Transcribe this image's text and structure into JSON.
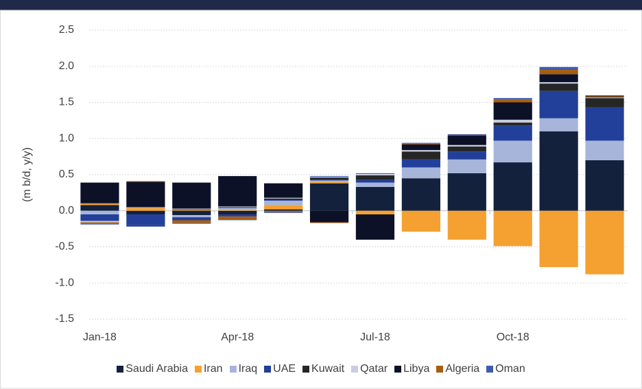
{
  "chart_data": {
    "type": "stacked-bar",
    "y_label": "(m b/d, y/y)",
    "categories": [
      "Jan-18",
      null,
      null,
      "Apr-18",
      null,
      null,
      "Jul-18",
      null,
      null,
      "Oct-18",
      null,
      null
    ],
    "series": [
      {
        "name": "Saudi Arabia",
        "color": "#14213d",
        "values": [
          0.08,
          -0.05,
          -0.06,
          -0.05,
          0.02,
          0.38,
          0.33,
          0.45,
          0.52,
          0.67,
          1.1,
          0.7
        ]
      },
      {
        "name": "Iran",
        "color": "#f4a131",
        "values": [
          0.02,
          0.04,
          0.01,
          0.01,
          0.06,
          0.02,
          -0.05,
          -0.29,
          -0.4,
          -0.49,
          -0.78,
          -0.88
        ]
      },
      {
        "name": "Iraq",
        "color": "#a6b5d9",
        "values": [
          -0.05,
          0.01,
          -0.03,
          0.03,
          0.06,
          0.02,
          0.06,
          0.15,
          0.19,
          0.3,
          0.18,
          0.27
        ]
      },
      {
        "name": "UAE",
        "color": "#223f99",
        "values": [
          -0.09,
          -0.15,
          -0.04,
          -0.03,
          0.01,
          0.01,
          0.04,
          0.11,
          0.11,
          0.21,
          0.38,
          0.46
        ]
      },
      {
        "name": "Kuwait",
        "color": "#262626",
        "values": [
          0.01,
          -0.01,
          0.01,
          0.01,
          0.02,
          0.03,
          0.06,
          0.11,
          0.07,
          0.04,
          0.1,
          0.13
        ]
      },
      {
        "name": "Qatar",
        "color": "#c9cde0",
        "values": [
          -0.02,
          0.0,
          0.01,
          0.01,
          0.01,
          0.01,
          0.02,
          0.02,
          0.02,
          0.04,
          0.02,
          0.01
        ]
      },
      {
        "name": "Libya",
        "color": "#0d1128",
        "values": [
          0.28,
          0.35,
          0.36,
          0.42,
          0.2,
          -0.16,
          -0.35,
          0.08,
          0.13,
          0.24,
          0.11,
          0.01
        ]
      },
      {
        "name": "Algeria",
        "color": "#a65e10",
        "values": [
          -0.02,
          0.01,
          -0.04,
          -0.04,
          -0.02,
          -0.01,
          0.0,
          0.01,
          0.01,
          0.04,
          0.06,
          0.02
        ]
      },
      {
        "name": "Oman",
        "color": "#3f5cb0",
        "values": [
          -0.01,
          -0.01,
          -0.01,
          -0.01,
          -0.01,
          0.01,
          0.01,
          0.01,
          0.01,
          0.02,
          0.04,
          0.0
        ]
      }
    ],
    "ylim": [
      -1.5,
      2.5
    ],
    "yticks": [
      -1.5,
      {
        "value": -1,
        "label": "-1.0"
      },
      -0.5,
      {
        "value": 0,
        "label": "0.0"
      },
      0.5,
      {
        "value": 1,
        "label": "1.0"
      },
      1.5,
      {
        "value": 2,
        "label": "2.0"
      },
      2.5
    ],
    "grid": true,
    "legend": "bottom"
  }
}
